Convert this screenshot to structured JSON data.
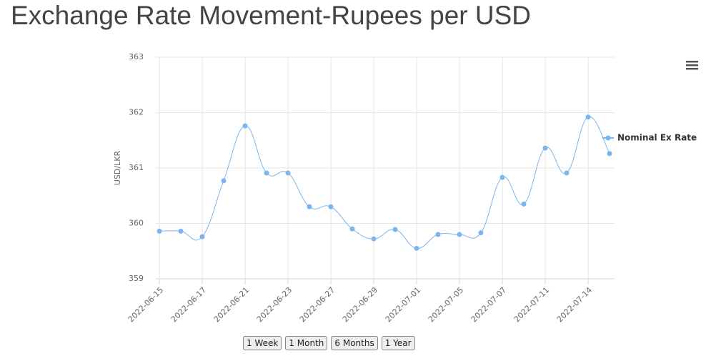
{
  "chart_data": {
    "type": "line",
    "title": "Exchange Rate Movement-Rupees per USD",
    "y_label": "USD/LKR",
    "categories": [
      "2022-06-15",
      null,
      "2022-06-17",
      null,
      "2022-06-21",
      null,
      "2022-06-23",
      null,
      "2022-06-27",
      null,
      "2022-06-29",
      null,
      "2022-07-01",
      null,
      "2022-07-05",
      null,
      "2022-07-07",
      null,
      "2022-07-11",
      null,
      "2022-07-14",
      null
    ],
    "series": [
      {
        "name": "Nominal Ex Rate",
        "color": "#7cb5ec",
        "values": [
          359.86,
          359.86,
          359.76,
          360.77,
          361.76,
          360.91,
          360.91,
          360.3,
          360.3,
          359.9,
          359.72,
          359.89,
          359.55,
          359.8,
          359.8,
          359.83,
          360.83,
          360.35,
          361.36,
          360.91,
          361.92,
          361.26
        ]
      }
    ],
    "ylim": [
      359,
      363
    ],
    "yticks": [
      359,
      360,
      361,
      362,
      363
    ],
    "grid": true,
    "legend": "right",
    "range_buttons": [
      "1 Week",
      "1 Month",
      "6 Months",
      "1 Year"
    ]
  }
}
